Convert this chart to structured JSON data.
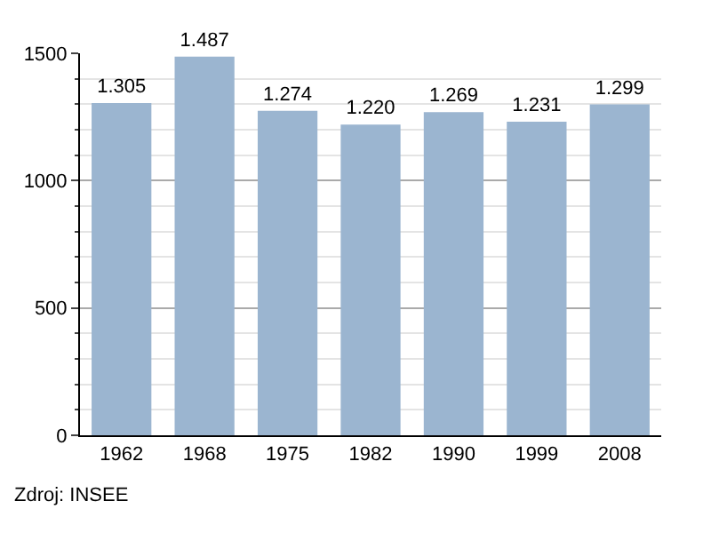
{
  "chart_data": {
    "type": "bar",
    "categories": [
      "1962",
      "1968",
      "1975",
      "1982",
      "1990",
      "1999",
      "2008"
    ],
    "values": [
      1305,
      1487,
      1274,
      1220,
      1269,
      1231,
      1299
    ],
    "value_labels": [
      "1.305",
      "1.487",
      "1.274",
      "1.220",
      "1.269",
      "1.231",
      "1.299"
    ],
    "color": "#9bb5d0",
    "ylim": [
      0,
      1500
    ],
    "yticks": [
      0,
      500,
      1000,
      1500
    ],
    "grid": "y",
    "annotations": [
      "Zdroj: INSEE"
    ]
  }
}
